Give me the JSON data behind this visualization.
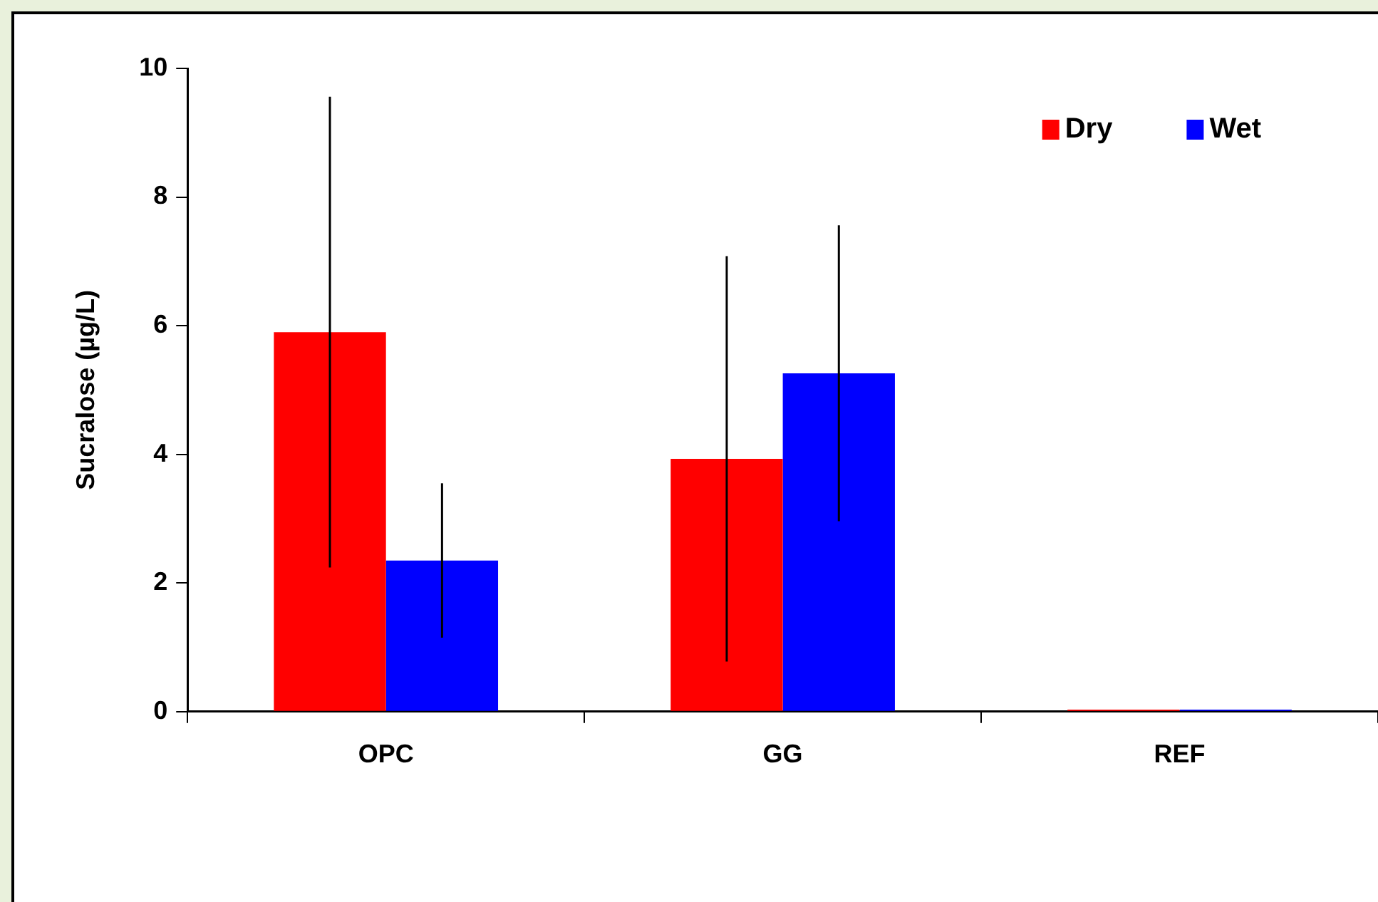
{
  "chart_data": {
    "type": "bar",
    "ylabel": "Sucralose (µg/L)",
    "categories": [
      "OPC",
      "GG",
      "REF"
    ],
    "series": [
      {
        "name": "Dry",
        "color": "#ff0000",
        "values": [
          5.9,
          3.93,
          0.03
        ],
        "errors": [
          3.66,
          3.15,
          null
        ]
      },
      {
        "name": "Wet",
        "color": "#0000ff",
        "values": [
          2.35,
          5.26,
          0.03
        ],
        "errors": [
          1.2,
          2.3,
          null
        ]
      }
    ],
    "ylim": [
      0,
      10
    ],
    "yticks": [
      0,
      2,
      4,
      6,
      8,
      10
    ],
    "grid": false,
    "legend": "top right"
  }
}
